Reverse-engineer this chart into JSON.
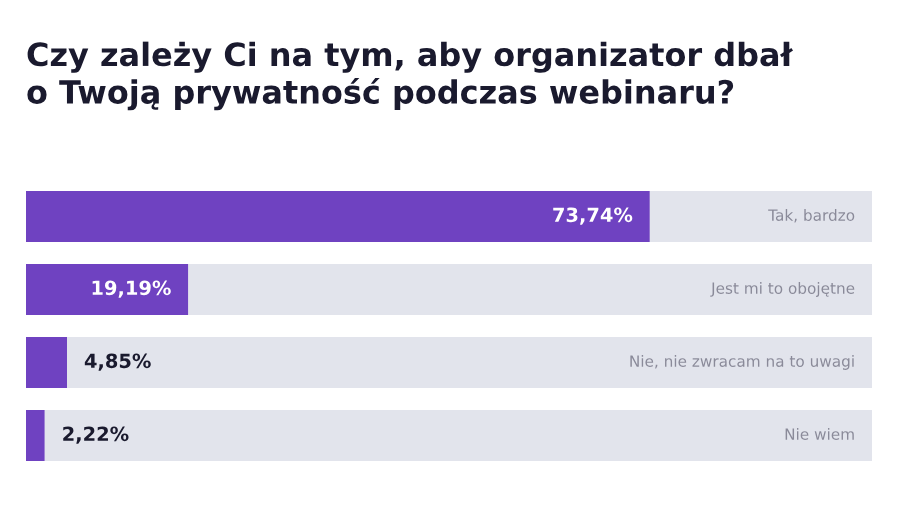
{
  "chart_data": {
    "type": "bar",
    "orientation": "horizontal",
    "stacked": true,
    "title": "Czy zależy Ci na tym, aby organizator dbał\no Twoją prywatność podczas webinaru?",
    "categories": [
      "Tak, bardzo",
      "Jest mi to obojętne",
      "Nie, nie zwracam na to uwagi",
      "Nie wiem"
    ],
    "series": [
      {
        "color": "#6f42c1",
        "values": [
          73.74,
          19.19,
          4.85,
          2.22
        ],
        "value_labels": [
          "73,74%",
          "19,19%",
          "4,85%",
          "2,22%"
        ]
      },
      {
        "color": "#e2e4ec",
        "values": [
          26.26,
          80.81,
          95.15,
          97.78
        ]
      }
    ],
    "xlim": [
      0,
      100
    ]
  }
}
